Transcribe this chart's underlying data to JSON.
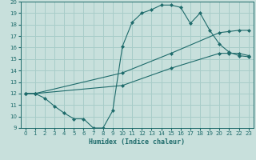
{
  "xlabel": "Humidex (Indice chaleur)",
  "background_color": "#c8e0dc",
  "grid_color": "#a8ccc8",
  "line_color": "#1e6b6b",
  "xlim": [
    -0.5,
    23.5
  ],
  "ylim": [
    9,
    20
  ],
  "xticks": [
    0,
    1,
    2,
    3,
    4,
    5,
    6,
    7,
    8,
    9,
    10,
    11,
    12,
    13,
    14,
    15,
    16,
    17,
    18,
    19,
    20,
    21,
    22,
    23
  ],
  "yticks": [
    9,
    10,
    11,
    12,
    13,
    14,
    15,
    16,
    17,
    18,
    19,
    20
  ],
  "curve1_x": [
    0,
    1,
    2,
    3,
    4,
    5,
    6,
    7,
    8,
    9,
    10,
    11,
    12,
    13,
    14,
    15,
    16,
    17,
    18,
    19,
    20,
    21,
    22,
    23
  ],
  "curve1_y": [
    12.0,
    12.0,
    11.6,
    10.9,
    10.3,
    9.8,
    9.8,
    9.0,
    9.0,
    10.5,
    16.1,
    18.2,
    19.0,
    19.3,
    19.7,
    19.7,
    19.5,
    18.1,
    19.0,
    17.5,
    16.3,
    15.6,
    15.3,
    15.2
  ],
  "curve2_x": [
    0,
    1,
    10,
    15,
    20,
    21,
    22,
    23
  ],
  "curve2_y": [
    12.0,
    12.0,
    13.8,
    15.5,
    17.3,
    17.4,
    17.5,
    17.5
  ],
  "curve3_x": [
    0,
    1,
    10,
    15,
    20,
    21,
    22,
    23
  ],
  "curve3_y": [
    12.0,
    12.0,
    12.7,
    14.2,
    15.5,
    15.5,
    15.5,
    15.3
  ]
}
